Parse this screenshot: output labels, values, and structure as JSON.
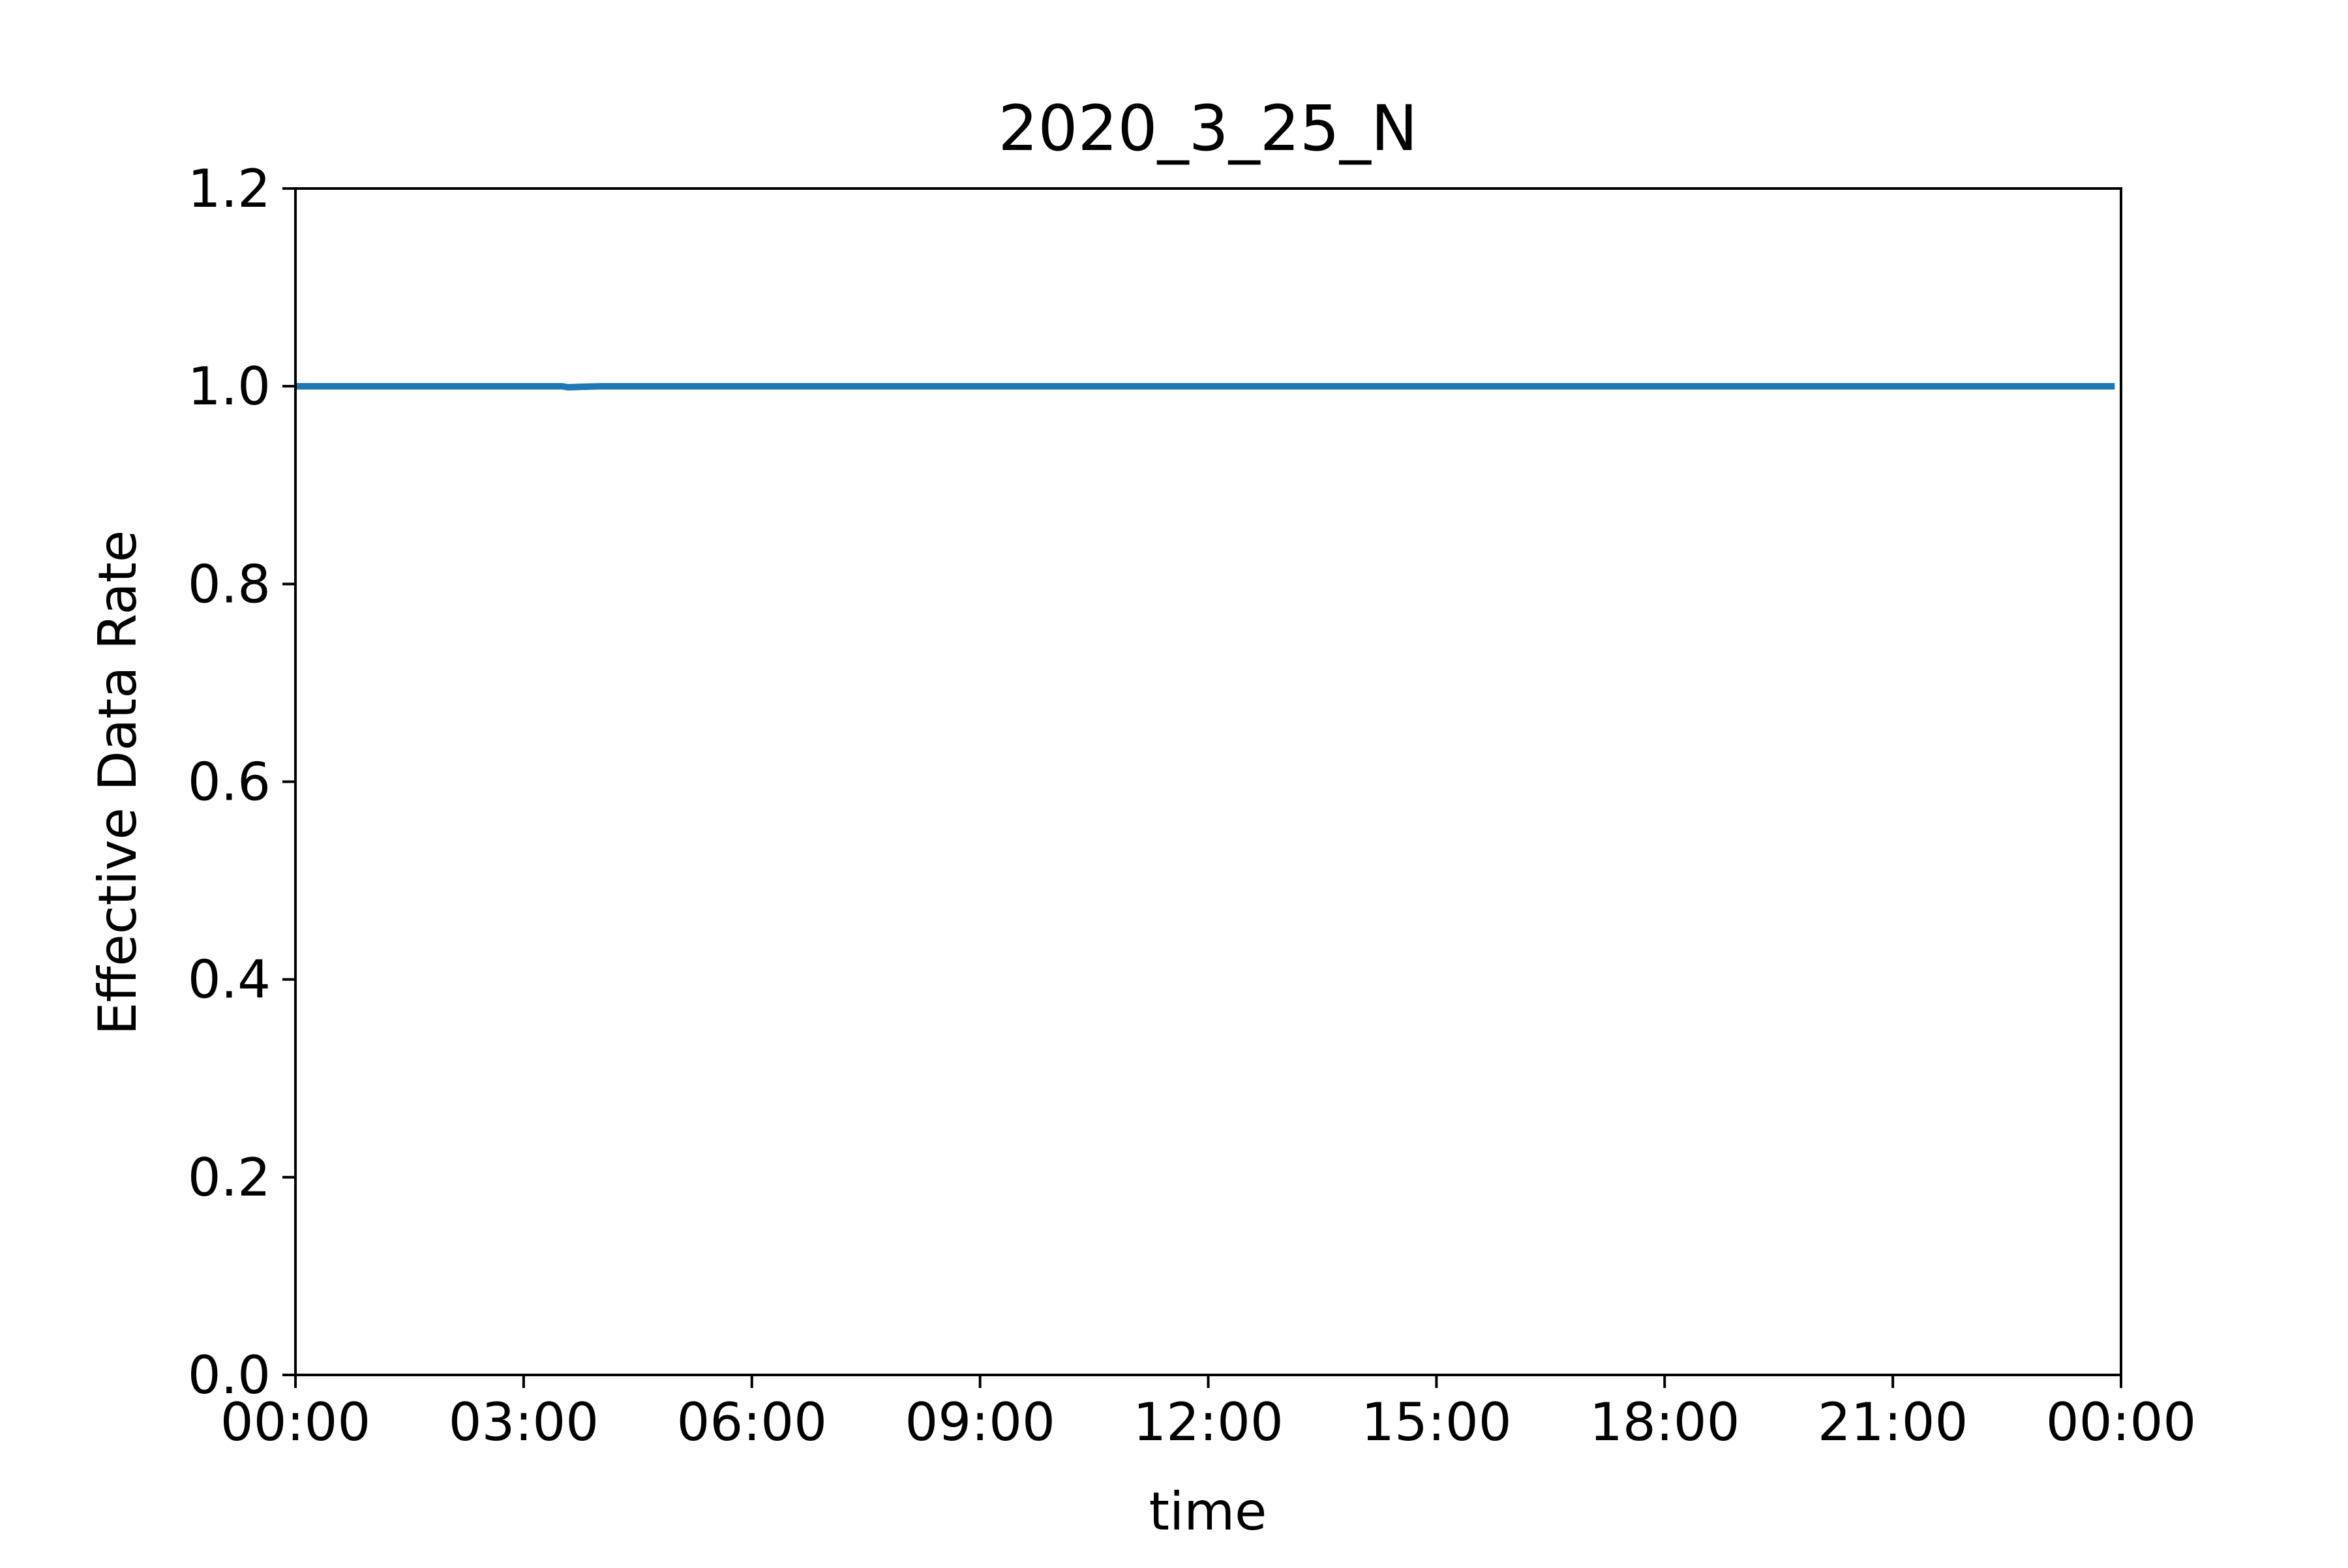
{
  "chart_data": {
    "type": "line",
    "title": "2020_3_25_N",
    "xlabel": "time",
    "ylabel": "Effective Data Rate",
    "xlim": [
      "00:00",
      "24:00"
    ],
    "ylim": [
      0.0,
      1.2
    ],
    "x_ticks": [
      "00:00",
      "03:00",
      "06:00",
      "09:00",
      "12:00",
      "15:00",
      "18:00",
      "21:00",
      "00:00"
    ],
    "y_ticks": [
      "0.0",
      "0.2",
      "0.4",
      "0.6",
      "0.8",
      "1.0",
      "1.2"
    ],
    "grid": false,
    "legend": "none",
    "series": [
      {
        "color": "#1f77b4",
        "x": [
          "00:00",
          "03:00",
          "03:30",
          "03:35",
          "04:00",
          "06:00",
          "09:00",
          "12:00",
          "15:00",
          "18:00",
          "21:00",
          "23:55"
        ],
        "values": [
          1.0,
          1.0,
          1.0,
          0.999,
          1.0,
          1.0,
          1.0,
          1.0,
          1.0,
          1.0,
          1.0,
          1.0
        ]
      }
    ]
  }
}
